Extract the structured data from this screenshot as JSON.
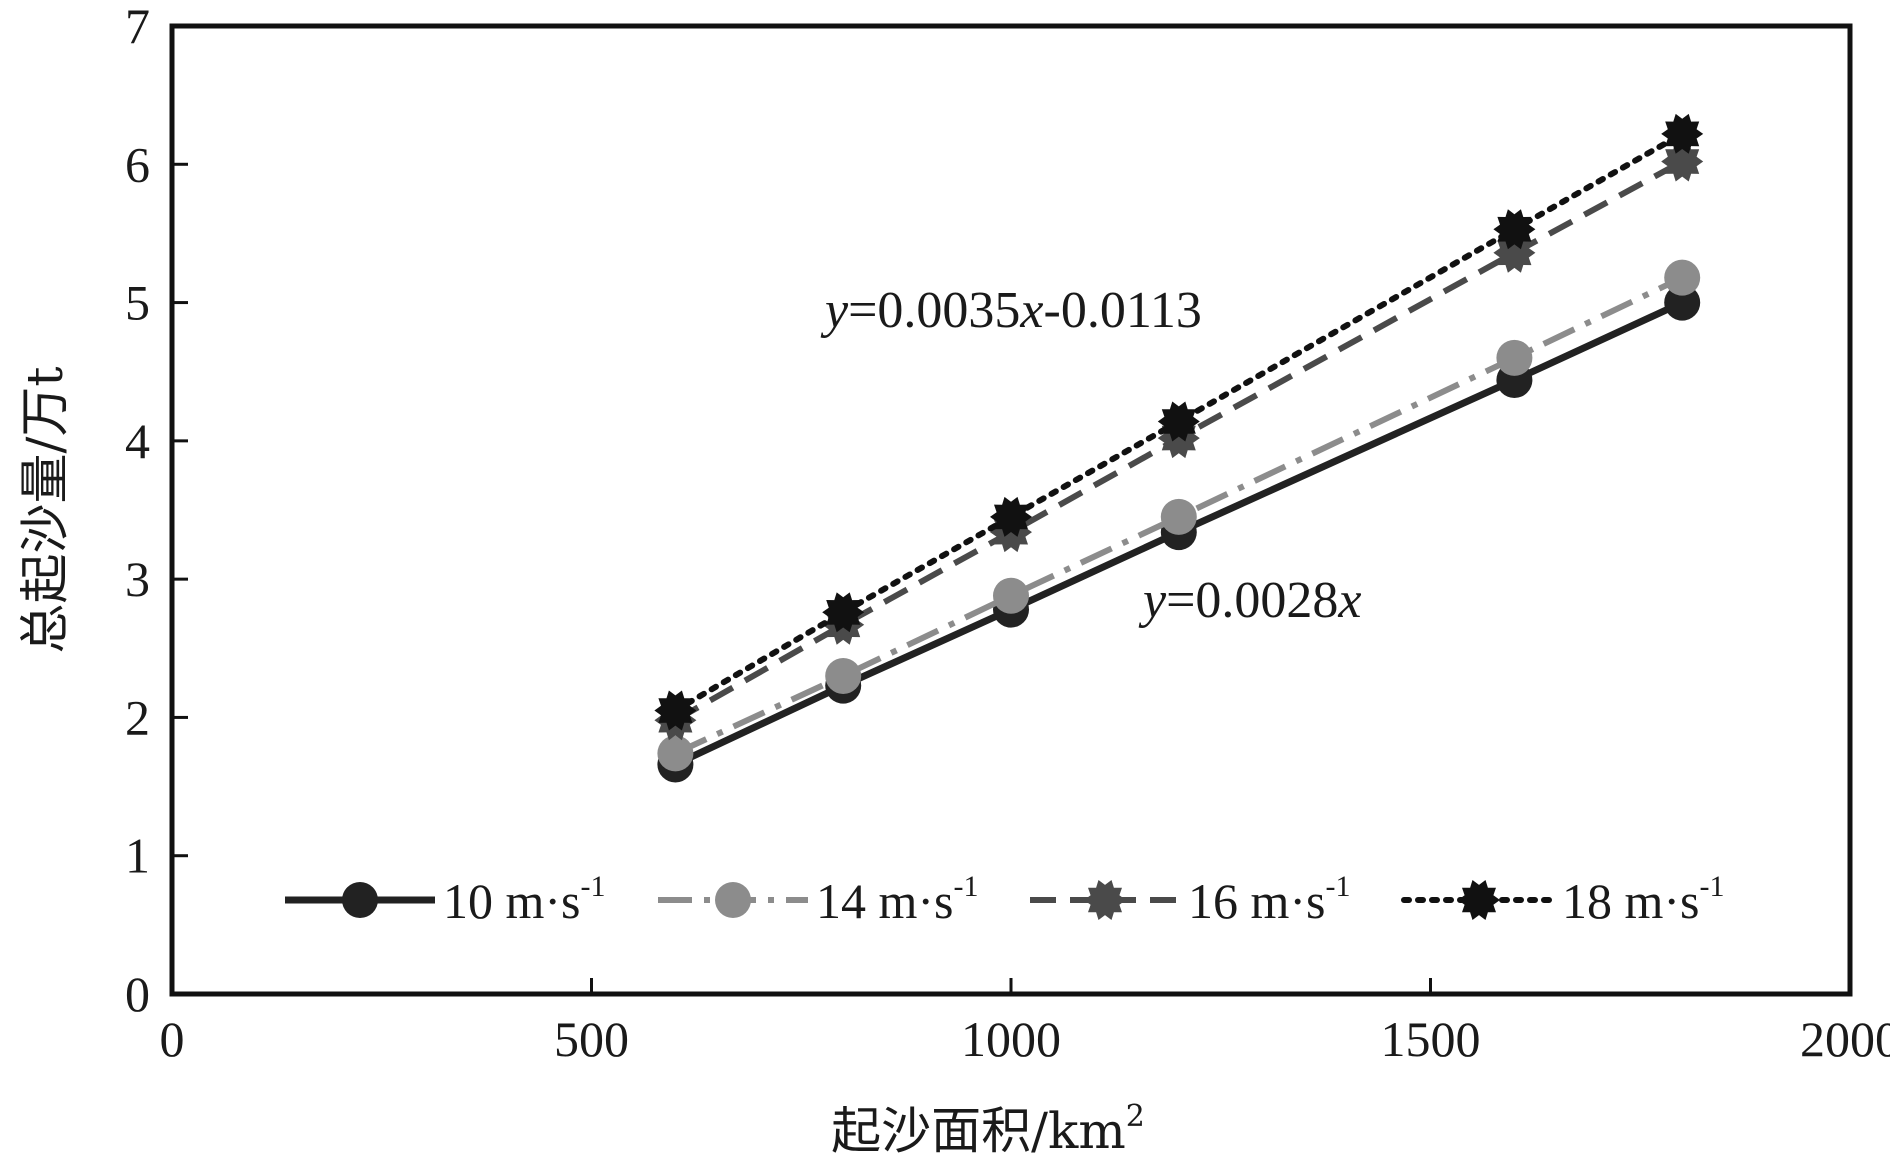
{
  "chart_data": {
    "type": "line",
    "title": "",
    "xlabel": "起沙面积/km",
    "xlabel_sup": "2",
    "ylabel": "总起沙量/万t",
    "xlim": [
      0,
      2000
    ],
    "ylim": [
      0,
      7
    ],
    "xticks": [
      "0",
      "500",
      "1000",
      "1500",
      "2000"
    ],
    "yticks": [
      "0",
      "1",
      "2",
      "3",
      "4",
      "5",
      "6",
      "7"
    ],
    "grid": false,
    "legend_position": "bottom-inside",
    "x": [
      600,
      800,
      1000,
      1200,
      1600,
      1800
    ],
    "series": [
      {
        "name": "10 m·s",
        "name_sup": "-1",
        "values": [
          1.66,
          2.23,
          2.78,
          3.34,
          4.44,
          5.0
        ],
        "color": "#222222",
        "dash": "solid",
        "marker": "circle"
      },
      {
        "name": "14 m·s",
        "name_sup": "-1",
        "values": [
          1.74,
          2.3,
          2.88,
          3.45,
          4.6,
          5.18
        ],
        "color": "#8c8c8c",
        "dash": "dashdot",
        "marker": "circle"
      },
      {
        "name": "16 m·s",
        "name_sup": "-1",
        "values": [
          1.98,
          2.67,
          3.34,
          4.02,
          5.36,
          6.02
        ],
        "color": "#4a4a4a",
        "dash": "dashed",
        "marker": "gear"
      },
      {
        "name": "18 m·s",
        "name_sup": "-1",
        "values": [
          2.05,
          2.76,
          3.45,
          4.14,
          5.53,
          6.22
        ],
        "color": "#111111",
        "dash": "dotted",
        "marker": "gear"
      }
    ],
    "annotations": [
      {
        "y_var": "y",
        "formula": "=0.0035",
        "x_var": "x",
        "tail": "-0.0113"
      },
      {
        "y_var": "y",
        "formula": "=0.0028",
        "x_var": "x",
        "tail": ""
      }
    ]
  }
}
